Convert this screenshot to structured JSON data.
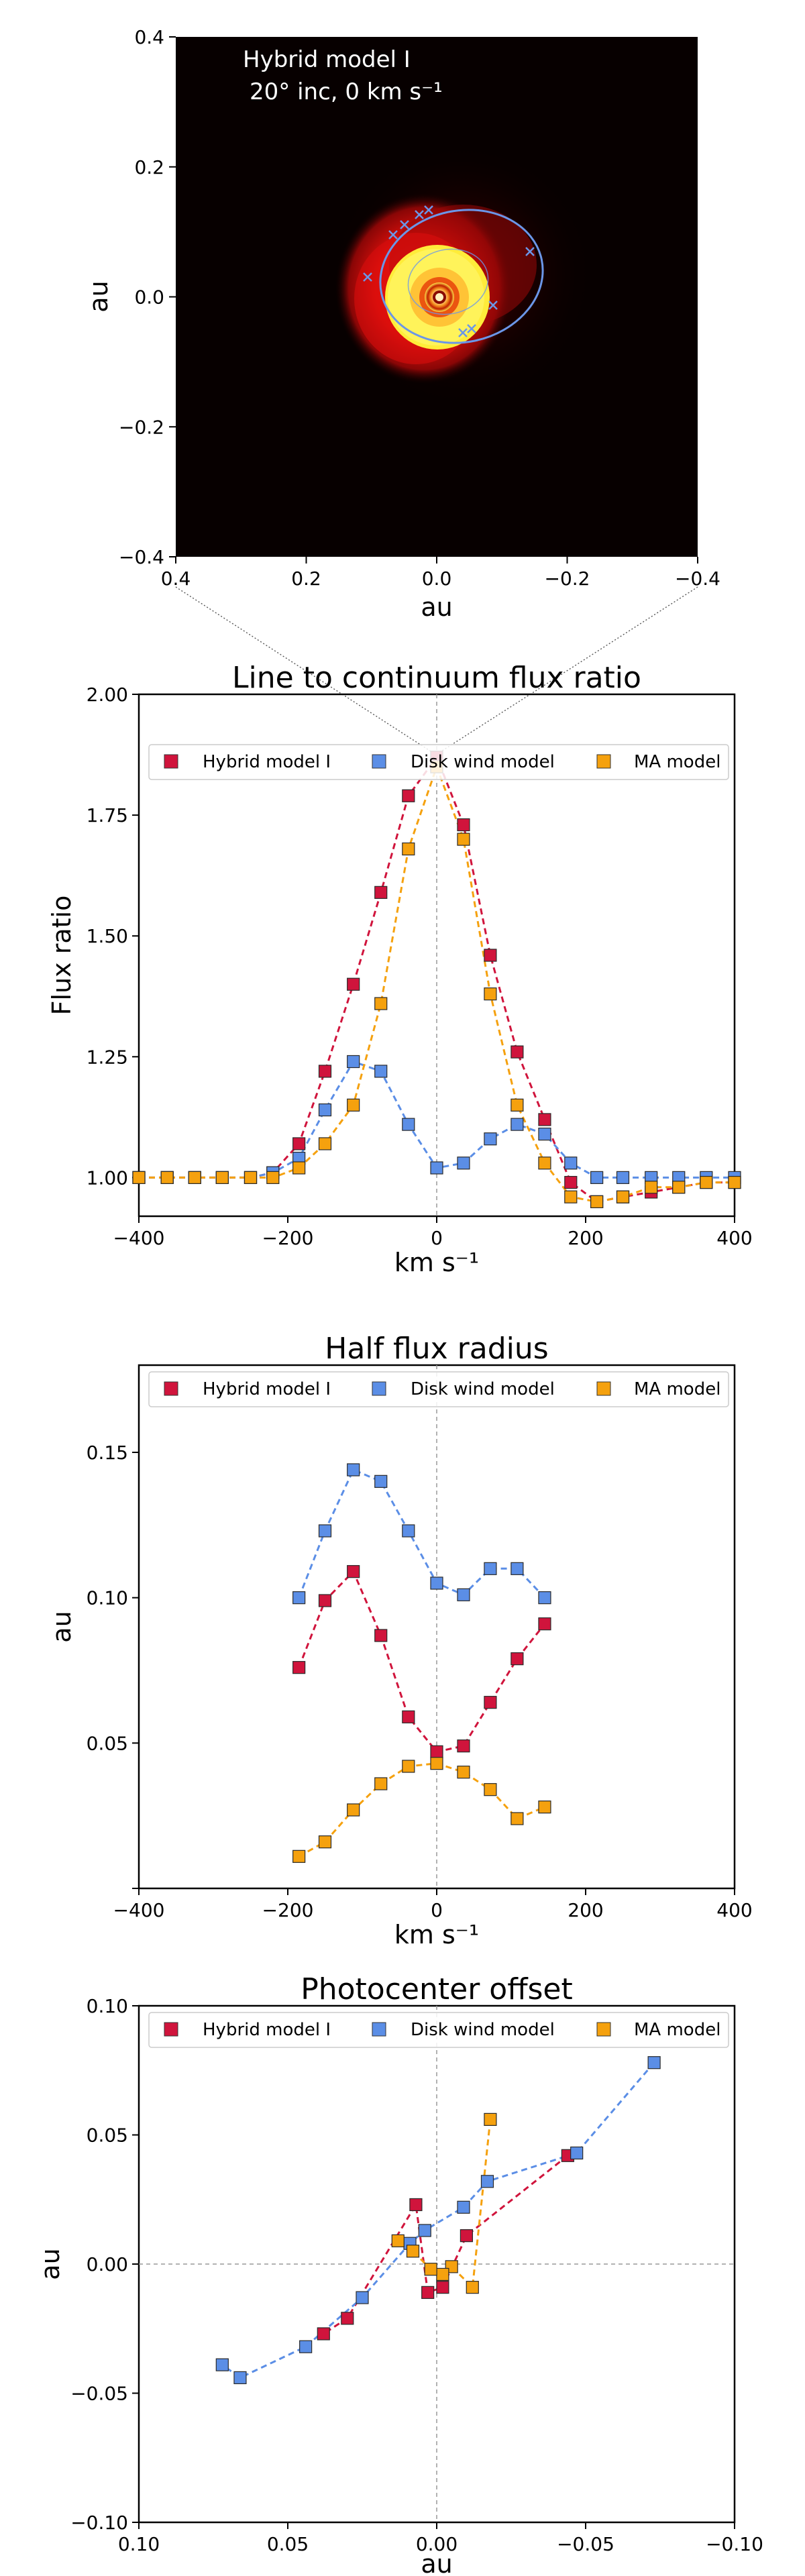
{
  "colors": {
    "hybrid": "#d0143c",
    "disk": "#5b8ee6",
    "ma": "#f5a10e",
    "orbit": "#6b96e8"
  },
  "image_panel": {
    "title": "Hybrid model I",
    "subtitle": "20° inc, 0 km s⁻¹",
    "xlabel": "au",
    "ylabel": "au",
    "xticks": [
      "0.4",
      "0.2",
      "0.0",
      "−0.2",
      "−0.4"
    ],
    "yticks": [
      "0.4",
      "0.2",
      "0.0",
      "−0.2",
      "−0.4"
    ]
  },
  "chart_data": [
    {
      "type": "line",
      "title": "Line to continuum flux ratio",
      "xlabel": "km s⁻¹",
      "ylabel": "Flux ratio",
      "xlim": [
        -400,
        400
      ],
      "ylim": [
        0.92,
        2.0
      ],
      "xticks": [
        -400,
        -200,
        0,
        200,
        400
      ],
      "xtick_labels": [
        "−400",
        "−200",
        "0",
        "200",
        "400"
      ],
      "yticks": [
        1.0,
        1.25,
        1.5,
        1.75,
        2.0
      ],
      "ytick_labels": [
        "1.00",
        "1.25",
        "1.50",
        "1.75",
        "2.00"
      ],
      "legend": "top",
      "series": [
        {
          "name": "Hybrid model I",
          "color_key": "hybrid",
          "x": [
            -400,
            -362,
            -325,
            -288,
            -250,
            -220,
            -185,
            -150,
            -112,
            -75,
            -38,
            0,
            36,
            72,
            108,
            145,
            180,
            215,
            250,
            288,
            325,
            362,
            400
          ],
          "y": [
            1.0,
            1.0,
            1.0,
            1.0,
            1.0,
            1.01,
            1.07,
            1.22,
            1.4,
            1.59,
            1.79,
            1.87,
            1.73,
            1.46,
            1.26,
            1.12,
            0.99,
            0.95,
            0.96,
            0.97,
            0.98,
            0.99,
            0.99
          ]
        },
        {
          "name": "Disk wind model",
          "color_key": "disk",
          "x": [
            -400,
            -362,
            -325,
            -288,
            -250,
            -220,
            -185,
            -150,
            -112,
            -75,
            -38,
            0,
            36,
            72,
            108,
            145,
            180,
            215,
            250,
            288,
            325,
            362,
            400
          ],
          "y": [
            1.0,
            1.0,
            1.0,
            1.0,
            1.0,
            1.01,
            1.04,
            1.14,
            1.24,
            1.22,
            1.11,
            1.02,
            1.03,
            1.08,
            1.11,
            1.09,
            1.03,
            1.0,
            1.0,
            1.0,
            1.0,
            1.0,
            1.0
          ]
        },
        {
          "name": "MA model",
          "color_key": "ma",
          "x": [
            -400,
            -362,
            -325,
            -288,
            -250,
            -220,
            -185,
            -150,
            -112,
            -75,
            -38,
            0,
            36,
            72,
            108,
            145,
            180,
            215,
            250,
            288,
            325,
            362,
            400
          ],
          "y": [
            1.0,
            1.0,
            1.0,
            1.0,
            1.0,
            1.0,
            1.02,
            1.07,
            1.15,
            1.36,
            1.68,
            1.85,
            1.7,
            1.38,
            1.15,
            1.03,
            0.96,
            0.95,
            0.96,
            0.98,
            0.98,
            0.99,
            0.99
          ]
        }
      ]
    },
    {
      "type": "line",
      "title": "Half flux radius",
      "xlabel": "km s⁻¹",
      "ylabel": "au",
      "xlim": [
        -400,
        400
      ],
      "ylim": [
        0.0,
        0.18
      ],
      "xticks": [
        -400,
        -200,
        0,
        200,
        400
      ],
      "xtick_labels": [
        "−400",
        "−200",
        "0",
        "200",
        "400"
      ],
      "yticks": [
        0.0,
        0.05,
        0.1,
        0.15
      ],
      "ytick_labels": [
        "",
        "0.05",
        "0.10",
        "0.15"
      ],
      "legend": "top",
      "series": [
        {
          "name": "Hybrid model I",
          "color_key": "hybrid",
          "x": [
            -185,
            -150,
            -112,
            -75,
            -38,
            0,
            36,
            72,
            108,
            145
          ],
          "y": [
            0.076,
            0.099,
            0.109,
            0.087,
            0.059,
            0.047,
            0.049,
            0.064,
            0.079,
            0.091
          ]
        },
        {
          "name": "Disk wind model",
          "color_key": "disk",
          "x": [
            -185,
            -150,
            -112,
            -75,
            -38,
            0,
            36,
            72,
            108,
            145
          ],
          "y": [
            0.1,
            0.123,
            0.144,
            0.14,
            0.123,
            0.105,
            0.101,
            0.11,
            0.11,
            0.1
          ]
        },
        {
          "name": "MA model",
          "color_key": "ma",
          "x": [
            -185,
            -150,
            -112,
            -75,
            -38,
            0,
            36,
            72,
            108,
            145
          ],
          "y": [
            0.011,
            0.016,
            0.027,
            0.036,
            0.042,
            0.043,
            0.04,
            0.034,
            0.024,
            0.028
          ]
        }
      ]
    },
    {
      "type": "line",
      "title": "Photocenter offset",
      "xlabel": "au",
      "ylabel": "au",
      "xlim": [
        0.1,
        -0.1
      ],
      "ylim": [
        -0.1,
        0.1
      ],
      "xticks": [
        0.1,
        0.05,
        0.0,
        -0.05,
        -0.1
      ],
      "xtick_labels": [
        "0.10",
        "0.05",
        "0.00",
        "−0.05",
        "−0.10"
      ],
      "yticks": [
        -0.1,
        -0.05,
        0.0,
        0.05,
        0.1
      ],
      "ytick_labels": [
        "−0.10",
        "−0.05",
        "0.00",
        "0.05",
        "0.10"
      ],
      "legend": "top",
      "series": [
        {
          "name": "Hybrid model I",
          "color_key": "hybrid",
          "x": [
            -0.044,
            -0.01,
            -0.002,
            0.003,
            0.007,
            0.03,
            0.038
          ],
          "y": [
            0.042,
            0.011,
            -0.009,
            -0.011,
            0.023,
            -0.021,
            -0.027
          ]
        },
        {
          "name": "Disk wind model",
          "color_key": "disk",
          "x": [
            -0.073,
            -0.047,
            -0.017,
            -0.009,
            0.004,
            0.009,
            0.025,
            0.044,
            0.066,
            0.072
          ],
          "y": [
            0.078,
            0.043,
            0.032,
            0.022,
            0.013,
            0.008,
            -0.013,
            -0.032,
            -0.044,
            -0.039
          ]
        },
        {
          "name": "MA model",
          "color_key": "ma",
          "x": [
            -0.018,
            -0.012,
            -0.005,
            -0.002,
            0.002,
            0.008,
            0.013
          ],
          "y": [
            0.056,
            -0.009,
            -0.001,
            -0.004,
            -0.002,
            0.005,
            0.009
          ]
        }
      ]
    }
  ]
}
